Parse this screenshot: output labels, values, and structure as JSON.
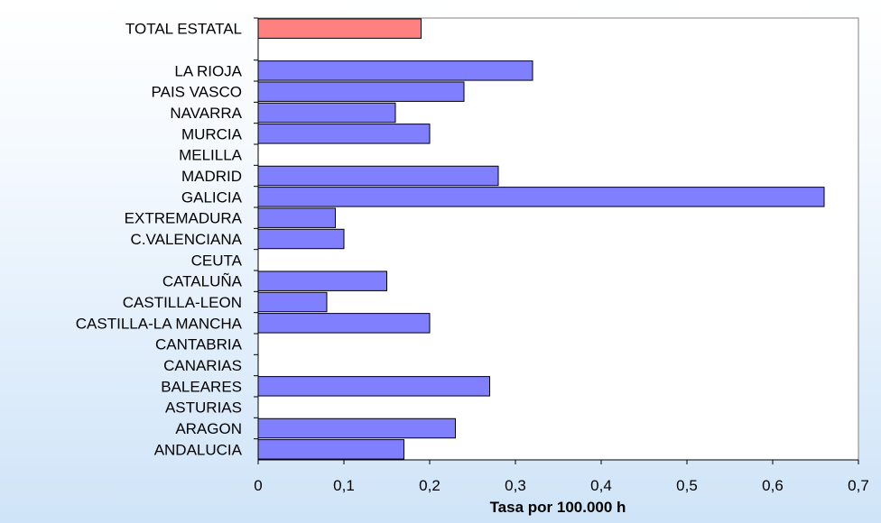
{
  "chart_data": {
    "type": "bar",
    "orientation": "horizontal",
    "title": "",
    "xlabel": "Tasa por 100.000 h",
    "ylabel": "",
    "xlim": [
      0,
      0.7
    ],
    "x_ticks": [
      "0",
      "0,1",
      "0,2",
      "0,3",
      "0,4",
      "0,5",
      "0,6",
      "0,7"
    ],
    "grid": false,
    "legend": "none",
    "categories": [
      "TOTAL ESTATAL",
      "",
      "LA RIOJA",
      "PAIS VASCO",
      "NAVARRA",
      "MURCIA",
      "MELILLA",
      "MADRID",
      "GALICIA",
      "EXTREMADURA",
      "C.VALENCIANA",
      "CEUTA",
      "CATALUÑA",
      "CASTILLA-LEON",
      "CASTILLA-LA MANCHA",
      "CANTABRIA",
      "CANARIAS",
      "BALEARES",
      "ASTURIAS",
      "ARAGON",
      "ANDALUCIA"
    ],
    "values": [
      0.19,
      null,
      0.32,
      0.24,
      0.16,
      0.2,
      0,
      0.28,
      0.66,
      0.09,
      0.1,
      0,
      0.15,
      0.08,
      0.2,
      0,
      0,
      0.27,
      0,
      0.23,
      0.17
    ],
    "colors": {
      "total": "#ff8080",
      "region": "#8080ff",
      "bar_edge": "#000000",
      "plot_background": "#ffffff",
      "axis": "#000000"
    }
  }
}
